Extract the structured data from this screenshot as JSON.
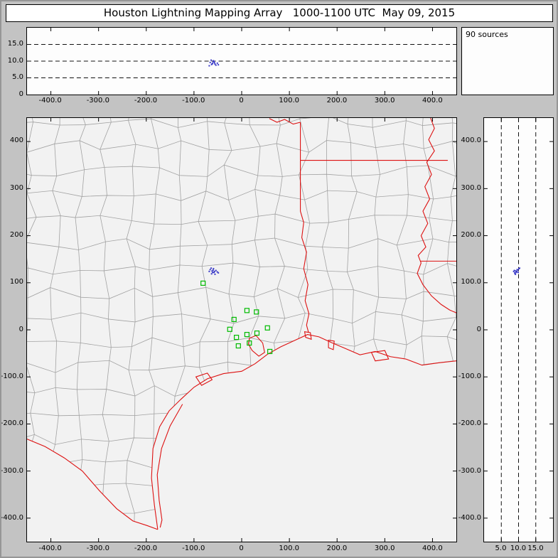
{
  "title": "Houston Lightning Mapping Array   1000-1100 UTC  May 09, 2015",
  "sources_label": "90 sources",
  "colors": {
    "frame_bg": "#c3c3c3",
    "panel_bg": "#fdfdfd",
    "map_bg": "#f2f2f2",
    "county_line": "#a2a2a2",
    "state_line": "#dd1111",
    "station": "#00bb00",
    "source": "#3b3bc8",
    "dash_line": "#111111"
  },
  "panels": {
    "alt_ew": {
      "y_ticks": [
        {
          "label": "15.0",
          "alt": 15
        },
        {
          "label": "10.0",
          "alt": 10
        },
        {
          "label": "5.0",
          "alt": 5
        },
        {
          "label": "0",
          "alt": 0
        }
      ],
      "x_ticks": [
        {
          "label": "-400.0",
          "km": -400
        },
        {
          "label": "-300.0",
          "km": -300
        },
        {
          "label": "-200.0",
          "km": -200
        },
        {
          "label": "-100.0",
          "km": -100
        },
        {
          "label": "0",
          "km": 0
        },
        {
          "label": "100.0",
          "km": 100
        },
        {
          "label": "200.0",
          "km": 200
        },
        {
          "label": "300.0",
          "km": 300
        },
        {
          "label": "400.0",
          "km": 400
        }
      ],
      "dashed_levels": [
        5,
        10,
        15
      ]
    },
    "map": {
      "y_ticks": [
        {
          "label": "400",
          "km": 400
        },
        {
          "label": "300",
          "km": 300
        },
        {
          "label": "200",
          "km": 200
        },
        {
          "label": "100",
          "km": 100
        },
        {
          "label": "0",
          "km": 0
        },
        {
          "label": "-100.0",
          "km": -100
        },
        {
          "label": "-200.0",
          "km": -200
        },
        {
          "label": "-300.0",
          "km": -300
        },
        {
          "label": "-400.0",
          "km": -400
        }
      ],
      "x_ticks": [
        {
          "label": "-400.0",
          "km": -400
        },
        {
          "label": "-300.0",
          "km": -300
        },
        {
          "label": "-200.0",
          "km": -200
        },
        {
          "label": "-100.0",
          "km": -100
        },
        {
          "label": "0",
          "km": 0
        },
        {
          "label": "100.0",
          "km": 100
        },
        {
          "label": "200.0",
          "km": 200
        },
        {
          "label": "300.0",
          "km": 300
        },
        {
          "label": "400.0",
          "km": 400
        }
      ]
    },
    "alt_ns": {
      "y_ticks": [
        {
          "label": "400.0",
          "km": 400
        },
        {
          "label": "300.0",
          "km": 300
        },
        {
          "label": "200.0",
          "km": 200
        },
        {
          "label": "100.0",
          "km": 100
        },
        {
          "label": "0",
          "km": 0
        },
        {
          "label": "-100.0",
          "km": -100
        },
        {
          "label": "-200.0",
          "km": -200
        },
        {
          "label": "-300.0",
          "km": -300
        },
        {
          "label": "-400.0",
          "km": -400
        }
      ],
      "x_ticks": [
        {
          "label": "5.0",
          "alt": 5
        },
        {
          "label": "10.0",
          "alt": 10
        },
        {
          "label": "15.0",
          "alt": 15
        }
      ],
      "dashed_levels": [
        5,
        10,
        15
      ]
    }
  },
  "chart_data": {
    "type": "scatter",
    "title": "Houston Lightning Mapping Array",
    "time_range_utc": "1000-1100 UTC",
    "date": "May 09, 2015",
    "source_count": 90,
    "panels": [
      {
        "name": "altitude-vs-east-west",
        "xlim": [
          -450,
          450
        ],
        "ylim": [
          0,
          20
        ],
        "dashed_altitudes_km": [
          5,
          10,
          15
        ]
      },
      {
        "name": "plan-view-map",
        "xlim": [
          -450,
          450
        ],
        "ylim": [
          -450,
          450
        ]
      },
      {
        "name": "altitude-vs-north-south",
        "xlim": [
          0,
          20
        ],
        "ylim": [
          -450,
          450
        ],
        "dashed_altitudes_km": [
          5,
          10,
          15
        ]
      }
    ],
    "lma_stations_km_ew_ns": [
      [
        -81,
        99
      ],
      [
        11,
        41
      ],
      [
        31,
        38
      ],
      [
        -16,
        22
      ],
      [
        -25,
        1
      ],
      [
        -11,
        -16
      ],
      [
        11,
        -10
      ],
      [
        32,
        -7
      ],
      [
        16,
        -28
      ],
      [
        -7,
        -34
      ],
      [
        54,
        4
      ],
      [
        59,
        -46
      ]
    ],
    "lightning_sources_km_ew_ns_alt": [
      [
        -66,
        128,
        9.6
      ],
      [
        -62,
        125,
        9.2
      ],
      [
        -58,
        122,
        9.9
      ],
      [
        -54,
        126,
        8.8
      ],
      [
        -63,
        119,
        9.0
      ],
      [
        -59,
        130,
        10.1
      ],
      [
        -51,
        123,
        9.4
      ],
      [
        -68,
        124,
        8.6
      ],
      [
        -56,
        118,
        9.1
      ],
      [
        -60,
        127,
        9.8
      ],
      [
        -64,
        131,
        10.3
      ],
      [
        -49,
        121,
        8.9
      ],
      [
        -57,
        124,
        9.5
      ],
      [
        -61,
        122,
        9.3
      ]
    ]
  }
}
